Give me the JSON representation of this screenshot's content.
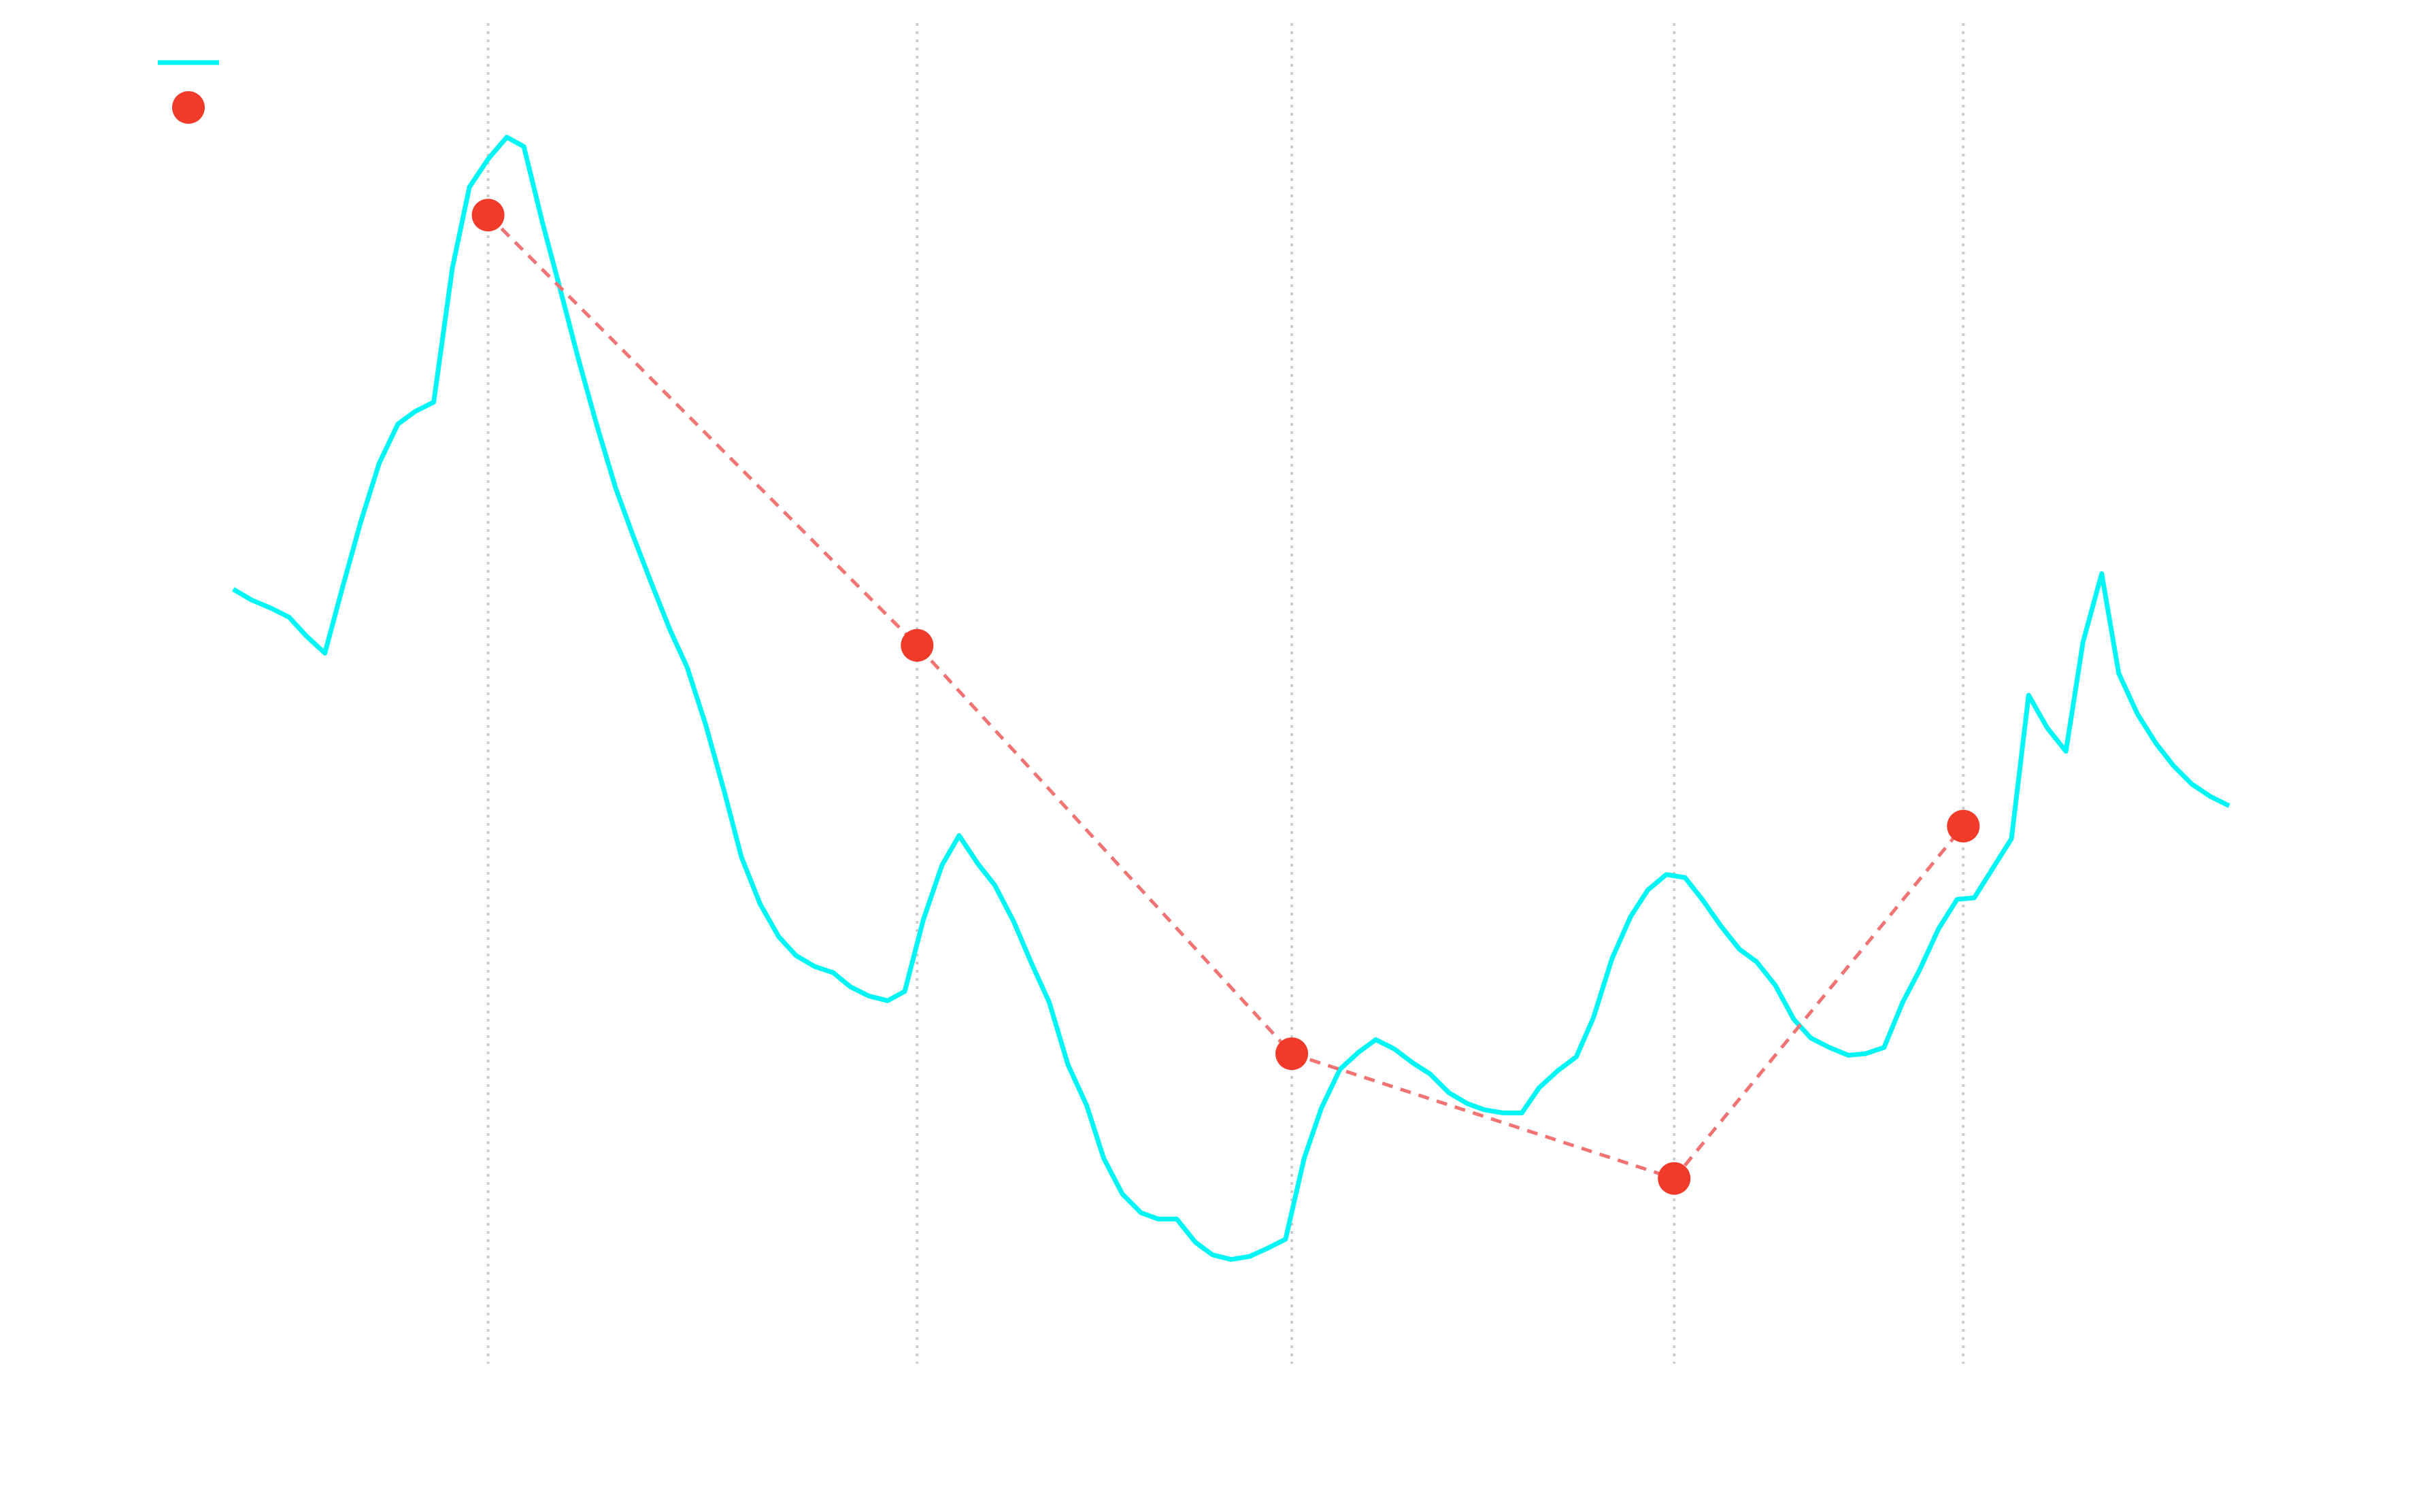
{
  "chart_data": {
    "type": "line",
    "xlim": [
      0,
      1560
    ],
    "ylim": [
      0,
      970
    ],
    "xticks": [
      314,
      590,
      831,
      1077,
      1263
    ],
    "grid": "x",
    "legend": "upper left",
    "series": [
      {
        "color": "#00f5f5",
        "style": "solid",
        "x": [
          150,
          162,
          174,
          186,
          197,
          209,
          220,
          232,
          244,
          256,
          267,
          279,
          291,
          302,
          314,
          326,
          337,
          349,
          361,
          372,
          384,
          396,
          407,
          419,
          431,
          442,
          454,
          466,
          477,
          489,
          501,
          512,
          524,
          536,
          547,
          559,
          571,
          582,
          594,
          606,
          617,
          629,
          640,
          652,
          664,
          675,
          687,
          699,
          710,
          722,
          734,
          745,
          757,
          769,
          780,
          792,
          804,
          815,
          827,
          839,
          850,
          862,
          874,
          885,
          897,
          909,
          920,
          932,
          944,
          955,
          967,
          979,
          990,
          1002,
          1014,
          1025,
          1037,
          1049,
          1060,
          1072,
          1084,
          1095,
          1107,
          1119,
          1130,
          1142,
          1154,
          1165,
          1177,
          1189,
          1200,
          1212,
          1224,
          1235,
          1247,
          1259,
          1270,
          1282,
          1294,
          1305,
          1317,
          1329,
          1340,
          1352,
          1363,
          1375,
          1387,
          1398,
          1410,
          1422,
          1434
        ],
        "values": [
          592,
          585,
          580,
          574,
          562,
          551,
          592,
          635,
          673,
          698,
          706,
          712,
          798,
          850,
          868,
          882,
          876,
          827,
          782,
          740,
          697,
          657,
          627,
          596,
          566,
          542,
          505,
          462,
          420,
          390,
          369,
          357,
          350,
          346,
          337,
          331,
          328,
          334,
          380,
          415,
          434,
          416,
          402,
          379,
          351,
          327,
          287,
          261,
          227,
          204,
          192,
          188,
          188,
          173,
          165,
          162,
          164,
          169,
          175,
          227,
          259,
          284,
          295,
          303,
          297,
          288,
          281,
          269,
          262,
          258,
          256,
          256,
          272,
          283,
          292,
          317,
          355,
          382,
          399,
          409,
          407,
          393,
          376,
          361,
          353,
          338,
          316,
          304,
          298,
          293,
          294,
          298,
          327,
          348,
          374,
          393,
          394,
          413,
          432,
          524,
          503,
          488,
          558,
          602,
          538,
          512,
          493,
          479,
          467,
          459,
          453
        ]
      },
      {
        "color": "#f23a2b",
        "line_color": "#f27373",
        "style": "dashed",
        "markers": true,
        "x": [
          314,
          590,
          831,
          1077,
          1263
        ],
        "values": [
          832,
          556,
          294,
          214,
          440
        ]
      }
    ]
  }
}
